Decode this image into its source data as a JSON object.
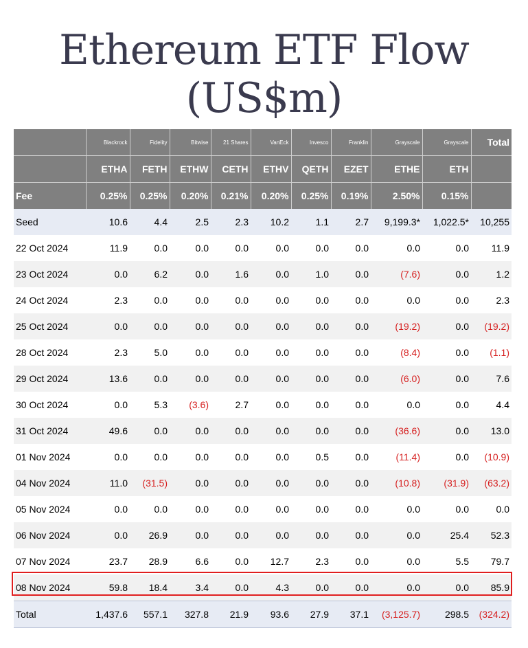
{
  "title": "Ethereum ETF Flow (US$m)",
  "providers": [
    "Blackrock",
    "Fidelity",
    "Bitwise",
    "21 Shares",
    "VanEck",
    "Invesco",
    "Franklin",
    "Grayscale",
    "Grayscale"
  ],
  "total_header": "Total",
  "tickers": [
    "ETHA",
    "FETH",
    "ETHW",
    "CETH",
    "ETHV",
    "QETH",
    "EZET",
    "ETHE",
    "ETH"
  ],
  "fee_label": "Fee",
  "fees": [
    "0.25%",
    "0.25%",
    "0.20%",
    "0.21%",
    "0.20%",
    "0.25%",
    "0.19%",
    "2.50%",
    "0.15%"
  ],
  "rows": [
    {
      "label": "Seed",
      "values": [
        "10.6",
        "4.4",
        "2.5",
        "2.3",
        "10.2",
        "1.1",
        "2.7",
        "9,199.3*",
        "1,022.5*",
        "10,255"
      ]
    },
    {
      "label": "22 Oct 2024",
      "values": [
        "11.9",
        "0.0",
        "0.0",
        "0.0",
        "0.0",
        "0.0",
        "0.0",
        "0.0",
        "0.0",
        "11.9"
      ]
    },
    {
      "label": "23 Oct 2024",
      "values": [
        "0.0",
        "6.2",
        "0.0",
        "1.6",
        "0.0",
        "1.0",
        "0.0",
        "(7.6)",
        "0.0",
        "1.2"
      ]
    },
    {
      "label": "24 Oct 2024",
      "values": [
        "2.3",
        "0.0",
        "0.0",
        "0.0",
        "0.0",
        "0.0",
        "0.0",
        "0.0",
        "0.0",
        "2.3"
      ]
    },
    {
      "label": "25 Oct 2024",
      "values": [
        "0.0",
        "0.0",
        "0.0",
        "0.0",
        "0.0",
        "0.0",
        "0.0",
        "(19.2)",
        "0.0",
        "(19.2)"
      ]
    },
    {
      "label": "28 Oct 2024",
      "values": [
        "2.3",
        "5.0",
        "0.0",
        "0.0",
        "0.0",
        "0.0",
        "0.0",
        "(8.4)",
        "0.0",
        "(1.1)"
      ]
    },
    {
      "label": "29 Oct 2024",
      "values": [
        "13.6",
        "0.0",
        "0.0",
        "0.0",
        "0.0",
        "0.0",
        "0.0",
        "(6.0)",
        "0.0",
        "7.6"
      ]
    },
    {
      "label": "30 Oct 2024",
      "values": [
        "0.0",
        "5.3",
        "(3.6)",
        "2.7",
        "0.0",
        "0.0",
        "0.0",
        "0.0",
        "0.0",
        "4.4"
      ]
    },
    {
      "label": "31 Oct 2024",
      "values": [
        "49.6",
        "0.0",
        "0.0",
        "0.0",
        "0.0",
        "0.0",
        "0.0",
        "(36.6)",
        "0.0",
        "13.0"
      ]
    },
    {
      "label": "01 Nov 2024",
      "values": [
        "0.0",
        "0.0",
        "0.0",
        "0.0",
        "0.0",
        "0.5",
        "0.0",
        "(11.4)",
        "0.0",
        "(10.9)"
      ]
    },
    {
      "label": "04 Nov 2024",
      "values": [
        "11.0",
        "(31.5)",
        "0.0",
        "0.0",
        "0.0",
        "0.0",
        "0.0",
        "(10.8)",
        "(31.9)",
        "(63.2)"
      ]
    },
    {
      "label": "05 Nov 2024",
      "values": [
        "0.0",
        "0.0",
        "0.0",
        "0.0",
        "0.0",
        "0.0",
        "0.0",
        "0.0",
        "0.0",
        "0.0"
      ]
    },
    {
      "label": "06 Nov 2024",
      "values": [
        "0.0",
        "26.9",
        "0.0",
        "0.0",
        "0.0",
        "0.0",
        "0.0",
        "0.0",
        "25.4",
        "52.3"
      ]
    },
    {
      "label": "07 Nov 2024",
      "values": [
        "23.7",
        "28.9",
        "6.6",
        "0.0",
        "12.7",
        "2.3",
        "0.0",
        "0.0",
        "5.5",
        "79.7"
      ]
    },
    {
      "label": "08 Nov 2024",
      "values": [
        "59.8",
        "18.4",
        "3.4",
        "0.0",
        "4.3",
        "0.0",
        "0.0",
        "0.0",
        "0.0",
        "85.9"
      ]
    },
    {
      "label": "Total",
      "values": [
        "1,437.6",
        "557.1",
        "327.8",
        "21.9",
        "93.6",
        "27.9",
        "37.1",
        "(3,125.7)",
        "298.5",
        "(324.2)"
      ]
    }
  ]
}
